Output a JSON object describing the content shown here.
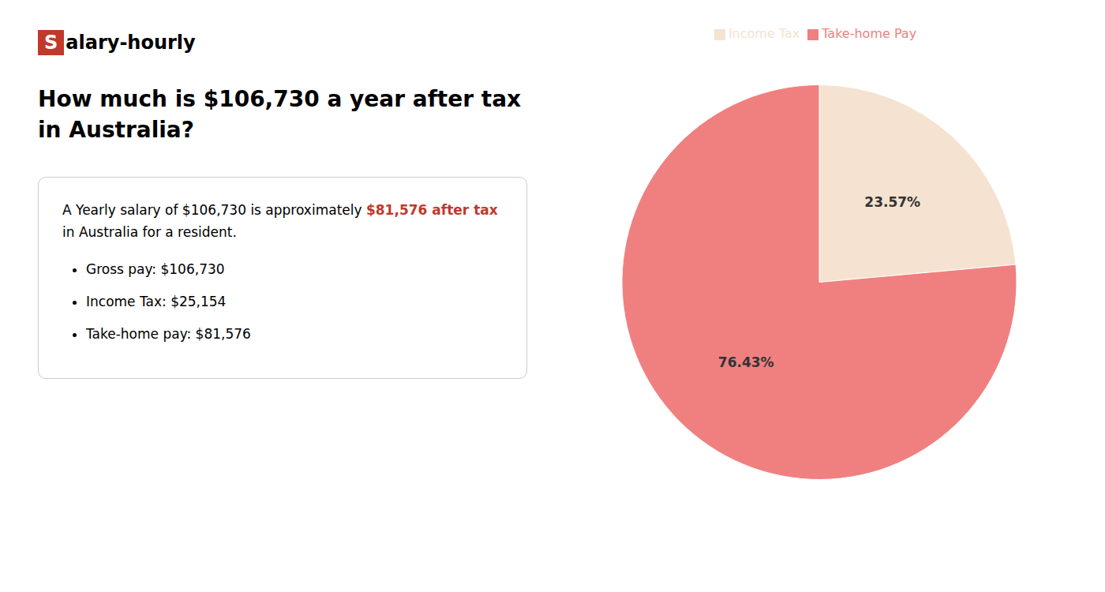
{
  "chart_data": {
    "type": "pie",
    "title": "How much is $106,730 a year after tax in Australia?",
    "annotations": [
      {
        "text": "S",
        "color": "#c0392b"
      },
      {
        "text": "alary-hourly"
      },
      {
        "text": "A Yearly salary of $106,730 is approximately "
      },
      {
        "text": "$81,576 after tax",
        "color": "#c0392b"
      },
      {
        "text": "in Australia for a resident."
      },
      {
        "text": "Gross pay: $106,730"
      },
      {
        "text": "Income Tax: $25,154"
      },
      {
        "text": "Take-home pay: $81,576"
      }
    ],
    "categories": [
      "Income Tax",
      "Take-home Pay"
    ],
    "values": [
      23.57,
      76.43
    ],
    "value_labels": [
      "23.57%",
      "76.43%"
    ],
    "colors": [
      "#f5e2d0",
      "#f08080"
    ],
    "data_labels": true,
    "legend": "top"
  }
}
